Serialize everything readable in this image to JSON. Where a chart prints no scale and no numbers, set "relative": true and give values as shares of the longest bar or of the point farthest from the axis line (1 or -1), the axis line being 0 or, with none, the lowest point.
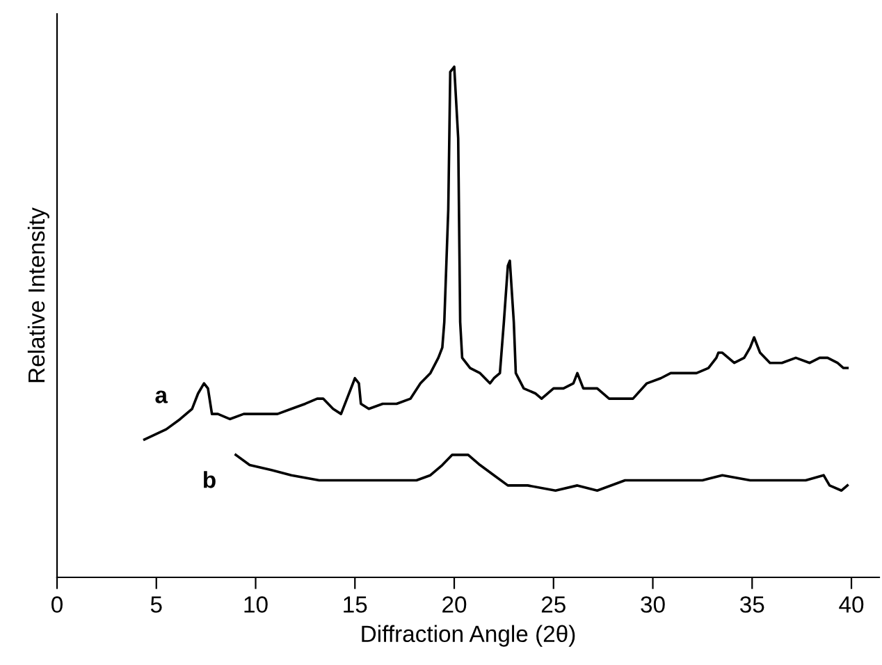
{
  "chart_data": {
    "type": "line",
    "xlabel": "Diffraction Angle (2θ)",
    "ylabel": "Relative Intensity",
    "relative": true,
    "xlim": [
      0,
      41.4
    ],
    "xticks": [
      0,
      5,
      10,
      15,
      20,
      25,
      30,
      35,
      40
    ],
    "tick_labels": "x",
    "grid": false,
    "legend": false,
    "series": [
      {
        "name": "a",
        "color": "#000000",
        "x": [
          4.4,
          5.5,
          6.2,
          6.8,
          7.1,
          7.4,
          7.6,
          7.8,
          8.1,
          8.7,
          9.4,
          10.4,
          11.1,
          11.8,
          12.5,
          13.1,
          13.4,
          13.9,
          14.3,
          14.6,
          15.0,
          15.2,
          15.3,
          15.7,
          16.4,
          17.1,
          17.8,
          18.3,
          18.8,
          19.2,
          19.4,
          19.5,
          19.7,
          19.8,
          20.0,
          20.2,
          20.3,
          20.4,
          20.8,
          21.3,
          21.8,
          22.0,
          22.3,
          22.5,
          22.7,
          22.8,
          23.0,
          23.1,
          23.5,
          24.1,
          24.4,
          25.0,
          25.5,
          26.0,
          26.2,
          26.4,
          26.5,
          27.2,
          27.8,
          28.3,
          29.0,
          29.7,
          30.4,
          30.9,
          31.4,
          32.2,
          32.8,
          33.2,
          33.3,
          33.5,
          34.1,
          34.6,
          34.9,
          35.1,
          35.4,
          35.9,
          36.5,
          37.2,
          37.9,
          38.4,
          38.8,
          39.3,
          39.6,
          39.8
        ],
        "values": [
          0.27,
          0.29,
          0.31,
          0.33,
          0.36,
          0.38,
          0.37,
          0.32,
          0.32,
          0.31,
          0.32,
          0.32,
          0.32,
          0.33,
          0.34,
          0.35,
          0.35,
          0.33,
          0.32,
          0.35,
          0.39,
          0.38,
          0.34,
          0.33,
          0.34,
          0.34,
          0.35,
          0.38,
          0.4,
          0.43,
          0.45,
          0.5,
          0.72,
          0.99,
          1.0,
          0.86,
          0.5,
          0.43,
          0.41,
          0.4,
          0.38,
          0.39,
          0.4,
          0.5,
          0.61,
          0.62,
          0.5,
          0.4,
          0.37,
          0.36,
          0.35,
          0.37,
          0.37,
          0.38,
          0.4,
          0.38,
          0.37,
          0.37,
          0.35,
          0.35,
          0.35,
          0.38,
          0.39,
          0.4,
          0.4,
          0.4,
          0.41,
          0.43,
          0.44,
          0.44,
          0.42,
          0.43,
          0.45,
          0.47,
          0.44,
          0.42,
          0.42,
          0.43,
          0.42,
          0.43,
          0.43,
          0.42,
          0.41,
          0.41
        ]
      },
      {
        "name": "b",
        "color": "#000000",
        "x": [
          9.0,
          9.7,
          10.8,
          11.8,
          13.2,
          14.6,
          15.5,
          16.7,
          18.1,
          18.8,
          19.4,
          19.9,
          20.2,
          20.7,
          21.3,
          22.0,
          22.7,
          23.7,
          25.1,
          26.2,
          27.2,
          28.6,
          30.0,
          31.4,
          32.5,
          33.5,
          34.9,
          36.3,
          37.7,
          38.6,
          38.9,
          39.5,
          39.8
        ],
        "values": [
          0.24,
          0.22,
          0.21,
          0.2,
          0.19,
          0.19,
          0.19,
          0.19,
          0.19,
          0.2,
          0.22,
          0.24,
          0.24,
          0.24,
          0.22,
          0.2,
          0.18,
          0.18,
          0.17,
          0.18,
          0.17,
          0.19,
          0.19,
          0.19,
          0.19,
          0.2,
          0.19,
          0.19,
          0.19,
          0.2,
          0.18,
          0.17,
          0.18
        ]
      }
    ]
  }
}
